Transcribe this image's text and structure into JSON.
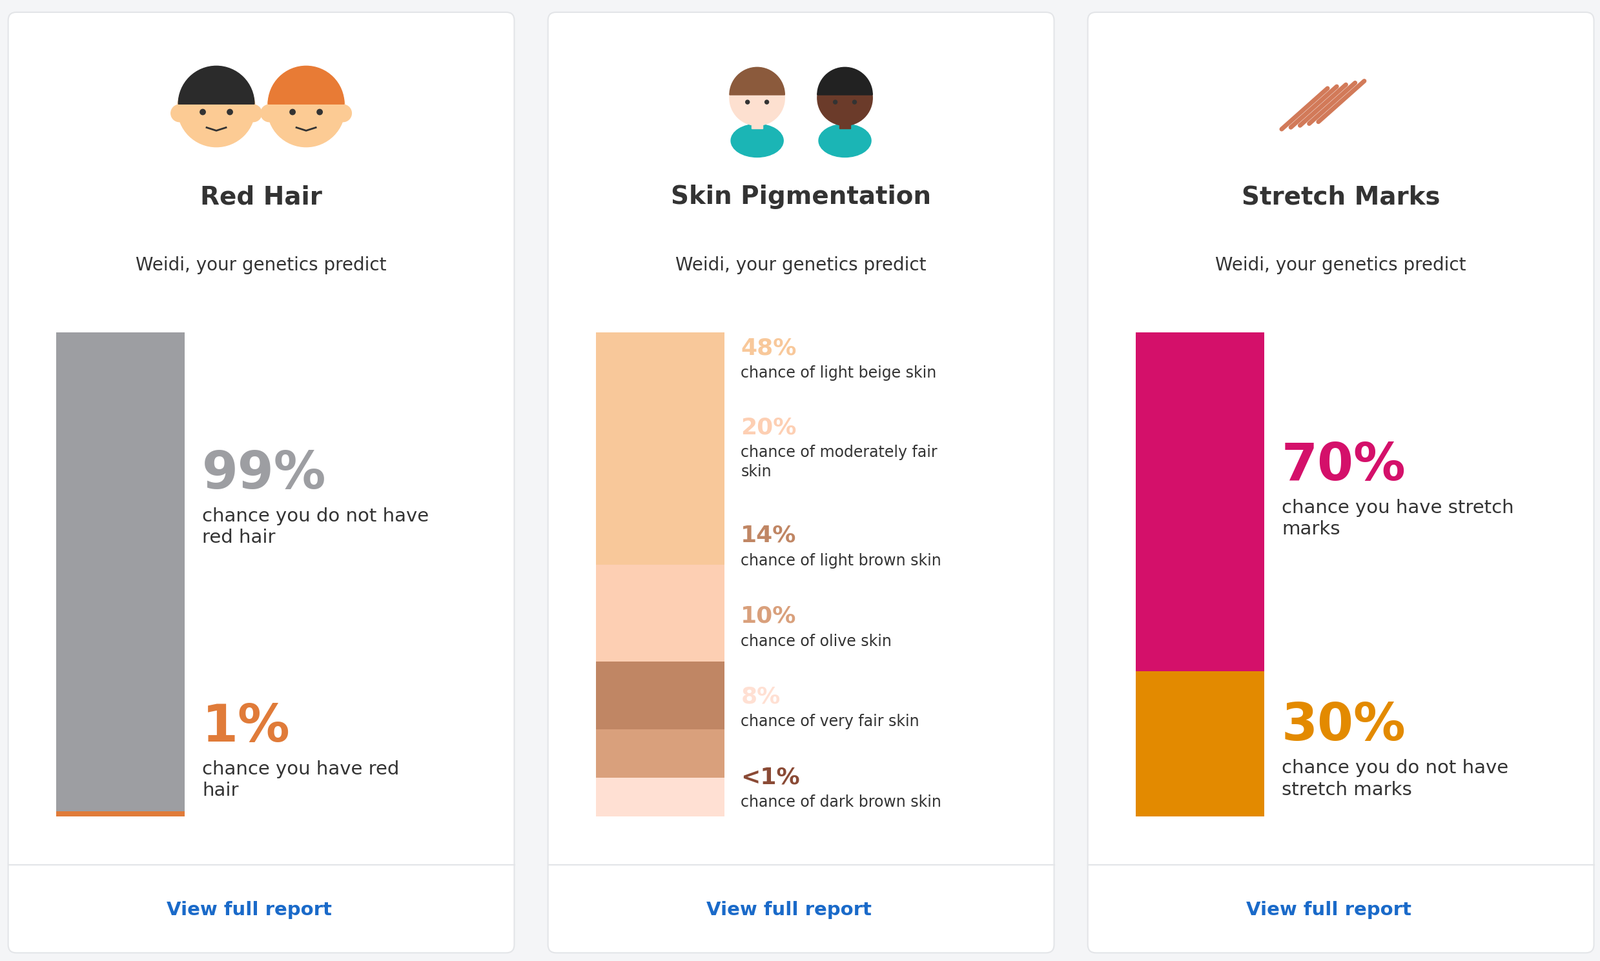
{
  "chart_data": [
    {
      "type": "bar",
      "stacked": true,
      "data_labels": true,
      "tick_labels": false,
      "title": "Red Hair",
      "subtitle": "Weidi, your genetics predict",
      "categories": [
        "chance you do not have red hair",
        "chance you have red hair"
      ],
      "values": [
        99,
        1
      ],
      "value_labels": [
        "99%",
        "1%"
      ],
      "colors": [
        "#9d9ea2",
        "#e07b39"
      ],
      "ylim": [
        0,
        100
      ],
      "annotations": [
        "View full report"
      ]
    },
    {
      "type": "bar",
      "stacked": true,
      "data_labels": true,
      "tick_labels": false,
      "title": "Skin Pigmentation",
      "subtitle": "Weidi, your genetics predict",
      "categories": [
        "chance of light beige skin",
        "chance of moderately fair skin",
        "chance of light brown skin",
        "chance of olive skin",
        "chance of very fair skin",
        "chance of dark brown skin"
      ],
      "values": [
        48,
        20,
        14,
        10,
        8,
        0.5
      ],
      "value_labels": [
        "48%",
        "20%",
        "14%",
        "10%",
        "8%",
        "<1%"
      ],
      "colors": [
        "#f8c89a",
        "#fdcfb3",
        "#c08664",
        "#d9a07c",
        "#ffe0d3",
        "#8a4a35"
      ],
      "ylim": [
        0,
        100
      ],
      "annotations": [
        "View full report"
      ]
    },
    {
      "type": "bar",
      "stacked": true,
      "data_labels": true,
      "tick_labels": false,
      "title": "Stretch Marks",
      "subtitle": "Weidi, your genetics predict",
      "categories": [
        "chance you have stretch marks",
        "chance you do not have stretch marks"
      ],
      "values": [
        70,
        30
      ],
      "value_labels": [
        "70%",
        "30%"
      ],
      "colors": [
        "#d4106a",
        "#e38a00"
      ],
      "ylim": [
        0,
        100
      ],
      "annotations": [
        "View full report"
      ]
    }
  ]
}
